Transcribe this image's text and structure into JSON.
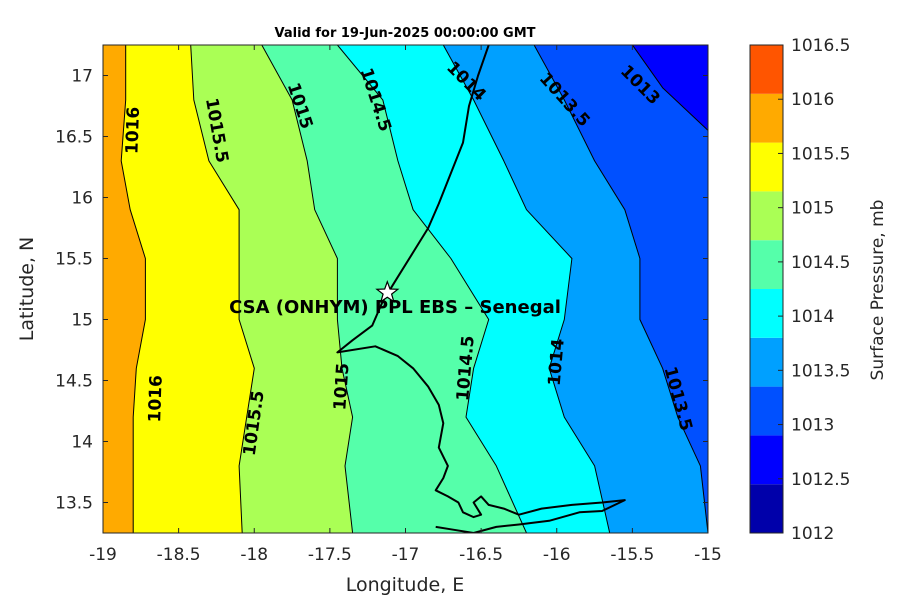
{
  "title": "Valid for 19-Jun-2025 00:00:00 GMT",
  "site_label": "CSA (ONHYM) PPL EBS  – Senegal",
  "chart_data": {
    "type": "contour map",
    "variable": "Surface Pressure",
    "units": "mb",
    "xlabel": "Longitude, E",
    "ylabel": "Latitude, N",
    "xlim": [
      -19,
      -15
    ],
    "ylim": [
      13.25,
      17.25
    ],
    "xticks": [
      "-19",
      "-18.5",
      "-18",
      "-17.5",
      "-17",
      "-16.5",
      "-16",
      "-15.5",
      "-15"
    ],
    "yticks": [
      "13.5",
      "14",
      "14.5",
      "15",
      "15.5",
      "16",
      "16.5",
      "17"
    ],
    "site": {
      "lon": -17.12,
      "lat": 15.22,
      "marker": "star"
    },
    "levels": [
      1012,
      1012.5,
      1013,
      1013.5,
      1014,
      1014.5,
      1015,
      1015.5,
      1016,
      1016.5
    ],
    "colors": [
      "#0000aa",
      "#0000ff",
      "#0050ff",
      "#00a0ff",
      "#00ffff",
      "#55ffaa",
      "#aaff55",
      "#ffff00",
      "#ffaa00",
      "#ff5500"
    ],
    "colorbar_title": "Surface Pressure, mb",
    "colorbar_ticks": [
      "1012",
      "1012.5",
      "1013",
      "1013.5",
      "1014",
      "1014.5",
      "1015",
      "1015.5",
      "1016",
      "1016.5"
    ],
    "contour_lines": [
      {
        "level": "1016",
        "lat": [
          17.25,
          16.8,
          16.3,
          15.9,
          15.5,
          15.0,
          14.6,
          14.2,
          13.8,
          13.25
        ],
        "lon": [
          -18.85,
          -18.85,
          -18.88,
          -18.82,
          -18.72,
          -18.72,
          -18.78,
          -18.8,
          -18.8,
          -18.8
        ]
      },
      {
        "level": "1015.5",
        "lat": [
          17.25,
          16.8,
          16.3,
          15.9,
          15.5,
          15.0,
          14.6,
          14.2,
          13.8,
          13.25
        ],
        "lon": [
          -18.42,
          -18.4,
          -18.3,
          -18.1,
          -18.1,
          -18.1,
          -18.0,
          -18.05,
          -18.1,
          -18.08
        ]
      },
      {
        "level": "1015",
        "lat": [
          17.25,
          16.8,
          16.3,
          15.9,
          15.5,
          15.0,
          14.6,
          14.2,
          13.8,
          13.25
        ],
        "lon": [
          -17.95,
          -17.75,
          -17.65,
          -17.6,
          -17.45,
          -17.45,
          -17.42,
          -17.35,
          -17.4,
          -17.35
        ]
      },
      {
        "level": "1014.5",
        "lat": [
          17.25,
          16.8,
          16.3,
          15.9,
          15.5,
          15.0,
          14.6,
          14.2,
          13.8,
          13.25
        ],
        "lon": [
          -17.45,
          -17.15,
          -17.05,
          -16.95,
          -16.7,
          -16.45,
          -16.55,
          -16.6,
          -16.4,
          -16.2
        ]
      },
      {
        "level": "1014",
        "lat": [
          17.25,
          16.8,
          16.3,
          15.9,
          15.5,
          15.0,
          14.6,
          14.2,
          13.8,
          13.25
        ],
        "lon": [
          -16.75,
          -16.55,
          -16.35,
          -16.2,
          -15.9,
          -15.95,
          -16.05,
          -15.95,
          -15.75,
          -15.65
        ]
      },
      {
        "level": "1013.5",
        "lat": [
          17.25,
          16.8,
          16.3,
          15.9,
          15.5,
          15.0,
          14.6,
          14.2,
          13.8,
          13.25
        ],
        "lon": [
          -16.15,
          -15.95,
          -15.75,
          -15.55,
          -15.45,
          -15.45,
          -15.3,
          -15.2,
          -15.05,
          -15.0
        ]
      },
      {
        "level": "1013",
        "lat": [
          17.25,
          16.9,
          16.55
        ],
        "lon": [
          -15.5,
          -15.3,
          -15.0
        ]
      }
    ],
    "inline_labels": [
      {
        "text": "1016",
        "lon": -18.8,
        "lat": 16.55,
        "angle": -88
      },
      {
        "text": "1016",
        "lon": -18.65,
        "lat": 14.35,
        "angle": -88
      },
      {
        "text": "1015.5",
        "lon": -18.25,
        "lat": 16.55,
        "angle": 80
      },
      {
        "text": "1015.5",
        "lon": -18.0,
        "lat": 14.15,
        "angle": -82
      },
      {
        "text": "1015",
        "lon": -17.7,
        "lat": 16.75,
        "angle": 72
      },
      {
        "text": "1015",
        "lon": -17.42,
        "lat": 14.45,
        "angle": -86
      },
      {
        "text": "1014.5",
        "lon": -17.2,
        "lat": 16.8,
        "angle": 72
      },
      {
        "text": "1014.5",
        "lon": -16.6,
        "lat": 14.6,
        "angle": -85
      },
      {
        "text": "1014",
        "lon": -16.6,
        "lat": 16.95,
        "angle": 45
      },
      {
        "text": "1014",
        "lon": -16.0,
        "lat": 14.65,
        "angle": -85
      },
      {
        "text": "1013.5",
        "lon": -15.95,
        "lat": 16.8,
        "angle": 48
      },
      {
        "text": "1013.5",
        "lon": -15.2,
        "lat": 14.35,
        "angle": 75
      },
      {
        "text": "1013",
        "lon": -15.45,
        "lat": 16.92,
        "angle": 45
      }
    ],
    "coastline": {
      "lon": [
        -16.45,
        -16.52,
        -16.58,
        -16.62,
        -16.7,
        -16.78,
        -16.85,
        -16.95,
        -17.05,
        -17.15,
        -17.22,
        -17.35,
        -17.45,
        -17.2,
        -17.05,
        -16.95,
        -16.85,
        -16.78,
        -16.75,
        -16.78,
        -16.72,
        -16.75,
        -16.8,
        -16.72,
        -16.65,
        -16.62,
        -16.55,
        -16.5,
        -16.55,
        -16.5,
        -16.45,
        -16.35,
        -16.25,
        -16.1,
        -15.9,
        -15.7,
        -15.55,
        -15.7,
        -15.85,
        -16.05,
        -16.25,
        -16.4,
        -16.55,
        -16.7,
        -16.8
      ],
      "lat": [
        17.25,
        17.0,
        16.75,
        16.45,
        16.2,
        15.95,
        15.75,
        15.55,
        15.35,
        15.15,
        14.95,
        14.83,
        14.73,
        14.78,
        14.7,
        14.6,
        14.45,
        14.3,
        14.15,
        13.95,
        13.8,
        13.7,
        13.6,
        13.55,
        13.5,
        13.42,
        13.38,
        13.4,
        13.5,
        13.55,
        13.48,
        13.45,
        13.4,
        13.45,
        13.48,
        13.5,
        13.52,
        13.43,
        13.42,
        13.35,
        13.32,
        13.3,
        13.25,
        13.28,
        13.3
      ]
    }
  }
}
